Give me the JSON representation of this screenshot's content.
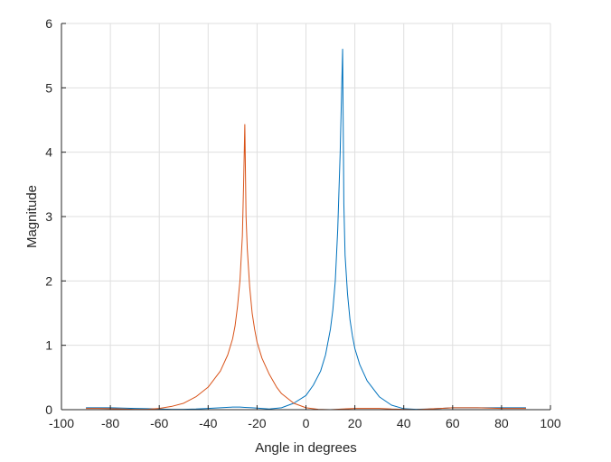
{
  "chart_data": {
    "type": "line",
    "title": "",
    "xlabel": "Angle in degrees",
    "ylabel": "Magnitude",
    "xlim": [
      -100,
      100
    ],
    "ylim": [
      0,
      6
    ],
    "xticks": [
      -100,
      -80,
      -60,
      -40,
      -20,
      0,
      20,
      40,
      60,
      80,
      100
    ],
    "yticks": [
      0,
      1,
      2,
      3,
      4,
      5,
      6
    ],
    "grid": true,
    "legend": "none",
    "series": [
      {
        "color": "#0072BD",
        "x": [
          -90,
          -85,
          -80,
          -75,
          -70,
          -65,
          -60,
          -55,
          -50,
          -45,
          -40,
          -35,
          -30,
          -27,
          -25,
          -22,
          -20,
          -15,
          -10,
          -5,
          0,
          3,
          6,
          8,
          10,
          11,
          12,
          13,
          14,
          14.5,
          15,
          15.5,
          16,
          17,
          18,
          19,
          20,
          22,
          25,
          30,
          35,
          40,
          45,
          50,
          55,
          60,
          65,
          70,
          75,
          80,
          85,
          90
        ],
        "y": [
          0.03,
          0.03,
          0.03,
          0.025,
          0.02,
          0.015,
          0.01,
          0.005,
          0.005,
          0.01,
          0.02,
          0.03,
          0.04,
          0.04,
          0.035,
          0.03,
          0.025,
          0.01,
          0.03,
          0.1,
          0.22,
          0.38,
          0.6,
          0.85,
          1.25,
          1.55,
          2.0,
          2.8,
          4.0,
          4.8,
          5.6,
          3.2,
          2.4,
          1.8,
          1.4,
          1.15,
          0.95,
          0.7,
          0.45,
          0.2,
          0.07,
          0.015,
          0.005,
          0.01,
          0.02,
          0.03,
          0.03,
          0.03,
          0.03,
          0.03,
          0.03,
          0.03
        ]
      },
      {
        "color": "#D95319",
        "x": [
          -90,
          -85,
          -80,
          -75,
          -70,
          -65,
          -60,
          -55,
          -50,
          -45,
          -40,
          -35,
          -32,
          -30,
          -29,
          -28,
          -27,
          -26,
          -25.5,
          -25,
          -24.5,
          -24,
          -23,
          -22,
          -21,
          -20,
          -18,
          -15,
          -12,
          -10,
          -5,
          0,
          5,
          10,
          15,
          20,
          25,
          30,
          35,
          40,
          45,
          50,
          55,
          60,
          65,
          70,
          75,
          80,
          85,
          90
        ],
        "y": [
          0.02,
          0.02,
          0.015,
          0.01,
          0.005,
          0.005,
          0.02,
          0.05,
          0.1,
          0.2,
          0.35,
          0.6,
          0.85,
          1.1,
          1.3,
          1.6,
          2.0,
          2.7,
          3.5,
          4.43,
          3.0,
          2.5,
          1.9,
          1.5,
          1.25,
          1.05,
          0.8,
          0.55,
          0.35,
          0.25,
          0.1,
          0.03,
          0.005,
          0.0,
          0.01,
          0.02,
          0.02,
          0.02,
          0.01,
          0.005,
          0.0,
          0.01,
          0.02,
          0.03,
          0.03,
          0.03,
          0.025,
          0.02,
          0.02,
          0.02
        ]
      }
    ]
  }
}
